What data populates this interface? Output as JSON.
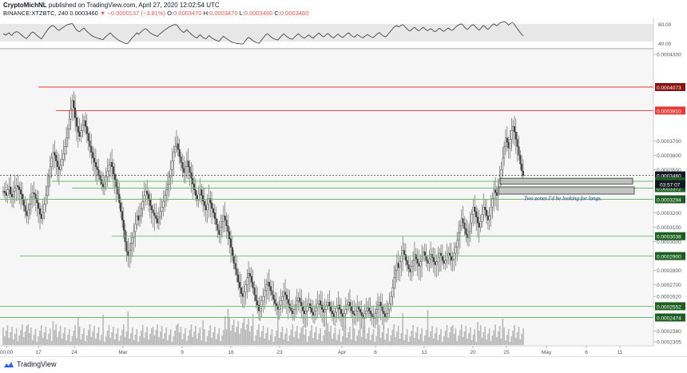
{
  "header": {
    "author": "CryptoMichNL",
    "published": "published on TradingView.com, April 27, 2020 12:02:54 UTC",
    "symbol": "BINANCE:XTZBTC, 240",
    "last": "0.0003460",
    "change": "▼ −0.0000137 (−3.81%)",
    "o_label": "O:",
    "o_value": "0.0003470",
    "h_label": "H:",
    "h_value": "0.0003470",
    "l_label": "L:",
    "l_value": "0.0003460",
    "c_label": "C:",
    "c_value": "0.0003460"
  },
  "footer": {
    "brand": "TradingView"
  },
  "colors": {
    "up": "#4a4a4a",
    "down": "#4a4a4a",
    "red_level": "#e53935",
    "green_level": "#66bb6a",
    "badge_dark": "#131722",
    "badge_green": "#1b5e20",
    "badge_red": "#e53935",
    "badge_darkred": "#8b1010",
    "annotation": "#1c3f94"
  },
  "chart_data": {
    "type": "candlestick",
    "x_ticks": [
      "00:00",
      "17",
      "24",
      "Mar",
      "9",
      "16",
      "23",
      "Apr",
      "6",
      "13",
      "20",
      "25",
      "May",
      "6",
      "11"
    ],
    "y_ticks": [
      "0.0004300",
      "0.0003700",
      "0.0003600",
      "0.0003500",
      "0.0003200",
      "0.0003100",
      "0.0003000",
      "0.0002800",
      "0.0002700",
      "0.0002620",
      "0.0002380",
      "0.0002305"
    ],
    "price_range": [
      0.0002305,
      0.00043
    ],
    "rsi_ticks": [
      "80.00",
      "40.00"
    ],
    "levels": [
      {
        "price": 0.0004073,
        "label": "0.0004073",
        "type": "red",
        "badge": "darkred"
      },
      {
        "price": 0.000391,
        "label": "0.0003910",
        "type": "red",
        "badge": "red"
      },
      {
        "price": 0.000346,
        "label": "0.0003460",
        "type": "current",
        "badge": "dark"
      },
      {
        "price": 0.0003419,
        "label": "0.0003419",
        "type": "green",
        "badge": "green"
      },
      {
        "price": 0.0003372,
        "label": "0.0003372",
        "type": "green",
        "badge": "green"
      },
      {
        "price": 0.0003294,
        "label": "0.0003294",
        "type": "green",
        "badge": "green"
      },
      {
        "price": 0.0003038,
        "label": "0.0003038",
        "type": "green",
        "badge": "green"
      },
      {
        "price": 0.00029,
        "label": "0.0002900",
        "type": "green",
        "badge": "green"
      },
      {
        "price": 0.0002552,
        "label": "0.0002552",
        "type": "green",
        "badge": "green"
      },
      {
        "price": 0.0002474,
        "label": "0.0002474",
        "type": "green",
        "badge": "green"
      }
    ],
    "countdown": "03:57:07",
    "zones": [
      {
        "top": 0.000344,
        "bottom": 0.00034
      },
      {
        "top": 0.000338,
        "bottom": 0.000333
      }
    ],
    "annotation": "Two zones I'd be looking for longs.",
    "series": [
      {
        "name": "price",
        "values": [
          0.000335,
          0.000334,
          0.000332,
          0.000336,
          0.000338,
          0.000333,
          0.000331,
          0.000335,
          0.000337,
          0.000339,
          0.000338,
          0.000336,
          0.000333,
          0.000329,
          0.000325,
          0.000321,
          0.000318,
          0.000322,
          0.000326,
          0.000331,
          0.000334,
          0.000333,
          0.00033,
          0.000327,
          0.000323,
          0.000319,
          0.000316,
          0.00032,
          0.000326,
          0.000332,
          0.000338,
          0.000345,
          0.000352,
          0.000358,
          0.000362,
          0.00036,
          0.000356,
          0.000352,
          0.00035,
          0.000353,
          0.000357,
          0.000361,
          0.000366,
          0.000372,
          0.000378,
          0.000385,
          0.000392,
          0.000398,
          0.000393,
          0.000386,
          0.00038,
          0.000376,
          0.000373,
          0.000377,
          0.000381,
          0.000384,
          0.00038,
          0.000375,
          0.00037,
          0.000366,
          0.000362,
          0.000358,
          0.000355,
          0.000352,
          0.00035,
          0.000346,
          0.000343,
          0.00034,
          0.000338,
          0.000342,
          0.000345,
          0.000349,
          0.000353,
          0.000355,
          0.000352,
          0.000347,
          0.000343,
          0.000338,
          0.000333,
          0.000327,
          0.000321,
          0.000315,
          0.000308,
          0.0003,
          0.000293,
          0.00029,
          0.000294,
          0.000299,
          0.000303,
          0.000307,
          0.000312,
          0.000318,
          0.000315,
          0.000318,
          0.000323,
          0.000328,
          0.000332,
          0.000335,
          0.000333,
          0.000329,
          0.000325,
          0.000322,
          0.00032,
          0.000318,
          0.000316,
          0.000313,
          0.000317,
          0.000321,
          0.000324,
          0.000328,
          0.000332,
          0.000336,
          0.00034,
          0.000345,
          0.00035,
          0.000356,
          0.000362,
          0.000366,
          0.000368,
          0.000364,
          0.000359,
          0.000355,
          0.000351,
          0.000348,
          0.000352,
          0.000356,
          0.000352,
          0.000348,
          0.000344,
          0.00034,
          0.000336,
          0.000332,
          0.000329,
          0.000333,
          0.000336,
          0.000332,
          0.000328,
          0.000325,
          0.000322,
          0.000326,
          0.00033,
          0.000327,
          0.000323,
          0.00032,
          0.000316,
          0.000312,
          0.000308,
          0.000305,
          0.00031,
          0.000314,
          0.000318,
          0.000315,
          0.000311,
          0.000307,
          0.000302,
          0.000296,
          0.00029,
          0.000285,
          0.000281,
          0.000277,
          0.000272,
          0.000268,
          0.000264,
          0.000262,
          0.000265,
          0.00027,
          0.000275,
          0.000278,
          0.000276,
          0.000272,
          0.000268,
          0.000263,
          0.000259,
          0.000256,
          0.000252,
          0.000255,
          0.000259,
          0.000262,
          0.000266,
          0.00027,
          0.000272,
          0.000269,
          0.000266,
          0.000263,
          0.00026,
          0.000257,
          0.000255,
          0.000253,
          0.000256,
          0.000259,
          0.000262,
          0.000265,
          0.000263,
          0.00026,
          0.000257,
          0.000254,
          0.000252,
          0.00025,
          0.000253,
          0.000256,
          0.000259,
          0.000261,
          0.000258,
          0.000255,
          0.000252,
          0.00025,
          0.000252,
          0.000255,
          0.000257,
          0.000254,
          0.000251,
          0.000249,
          0.000252,
          0.000254,
          0.000257,
          0.000259,
          0.000256,
          0.000253,
          0.000251,
          0.000253,
          0.000256,
          0.000258,
          0.000255,
          0.000252,
          0.00025,
          0.000248,
          0.000251,
          0.000254,
          0.000256,
          0.000253,
          0.00025,
          0.000248,
          0.00025,
          0.000253,
          0.000256,
          0.000258,
          0.000255,
          0.000252,
          0.00025,
          0.000249,
          0.000252,
          0.000255,
          0.000253,
          0.000251,
          0.000249,
          0.000247,
          0.00025,
          0.000252,
          0.000254,
          0.000252,
          0.00025,
          0.000248,
          0.000247,
          0.00025,
          0.000253,
          0.000256,
          0.000258,
          0.000255,
          0.000252,
          0.00025,
          0.000248,
          0.00025,
          0.000253,
          0.000257,
          0.000262,
          0.000268,
          0.000275,
          0.00028,
          0.000285,
          0.000282,
          0.000286,
          0.00029,
          0.000294,
          0.000291,
          0.000287,
          0.000284,
          0.000281,
          0.000279,
          0.000283,
          0.000287,
          0.000291,
          0.000288,
          0.000285,
          0.000283,
          0.000286,
          0.00029,
          0.000293,
          0.00029,
          0.000287,
          0.000285,
          0.000288,
          0.000291,
          0.000289,
          0.000286,
          0.000284,
          0.000286,
          0.000289,
          0.000292,
          0.00029,
          0.000287,
          0.000285,
          0.000287,
          0.00029,
          0.000292,
          0.00029,
          0.000287,
          0.000288,
          0.000292,
          0.000296,
          0.000301,
          0.000306,
          0.000311,
          0.000316,
          0.000313,
          0.000309,
          0.000305,
          0.000303,
          0.000307,
          0.000313,
          0.000319,
          0.000324,
          0.000321,
          0.000317,
          0.000313,
          0.00031,
          0.000314,
          0.000319,
          0.000324,
          0.000322,
          0.000318,
          0.000315,
          0.000318,
          0.000324,
          0.00033,
          0.000336,
          0.000334,
          0.000332,
          0.000337,
          0.000343,
          0.00035,
          0.000358,
          0.000366,
          0.000372,
          0.000369,
          0.000365,
          0.000371,
          0.000377,
          0.00038,
          0.000376,
          0.000371,
          0.000366,
          0.00036,
          0.000354,
          0.000349,
          0.000346
        ]
      }
    ],
    "rsi": [
      52,
      50,
      48,
      53,
      55,
      49,
      47,
      54,
      56,
      58,
      57,
      54,
      50,
      46,
      43,
      40,
      38,
      44,
      48,
      54,
      57,
      55,
      51,
      47,
      44,
      40,
      37,
      43,
      50,
      56,
      62,
      68,
      72,
      75,
      76,
      73,
      68,
      64,
      62,
      65,
      68,
      71,
      74,
      77,
      79,
      80,
      81,
      82,
      76,
      69,
      63,
      60,
      58,
      62,
      66,
      69,
      64,
      59,
      55,
      51,
      48,
      45,
      43,
      41,
      40,
      38,
      37,
      36,
      35,
      40,
      44,
      48,
      52,
      54,
      50,
      45,
      42,
      38,
      35,
      32,
      30,
      28,
      26,
      24,
      23,
      25,
      30,
      36,
      41,
      45,
      50,
      55,
      50,
      54,
      58,
      62,
      65,
      67,
      64,
      59,
      55,
      52,
      50,
      48,
      46,
      44,
      49,
      53,
      56,
      60,
      63,
      66,
      69,
      72,
      74,
      76,
      78,
      79,
      78,
      73,
      67,
      62,
      58,
      56,
      60,
      64,
      59,
      55,
      51,
      47,
      44,
      41,
      40,
      45,
      49,
      45,
      41,
      39,
      37,
      42,
      47,
      43,
      40,
      37,
      35,
      33,
      31,
      30,
      36,
      41,
      45,
      41,
      38,
      35,
      32,
      29,
      27,
      26,
      25,
      24,
      23,
      23,
      22,
      22,
      26,
      32,
      38,
      42,
      39,
      35,
      32,
      29,
      27,
      26,
      24,
      29,
      35,
      40,
      45,
      50,
      52,
      48,
      44,
      41,
      38,
      36,
      35,
      34,
      39,
      44,
      48,
      52,
      48,
      44,
      41,
      38,
      37,
      36,
      41,
      45,
      49,
      52,
      48,
      44,
      41,
      39,
      42,
      46,
      49,
      45,
      41,
      39,
      44,
      47,
      51,
      54,
      50,
      46,
      43,
      46,
      50,
      53,
      49,
      45,
      42,
      40,
      44,
      48,
      51,
      47,
      43,
      41,
      44,
      48,
      52,
      55,
      51,
      47,
      44,
      42,
      46,
      50,
      47,
      44,
      42,
      40,
      44,
      47,
      50,
      47,
      44,
      42,
      41,
      45,
      49,
      53,
      56,
      52,
      48,
      45,
      43,
      46,
      51,
      56,
      61,
      66,
      71,
      74,
      76,
      72,
      74,
      77,
      79,
      75,
      70,
      66,
      62,
      60,
      64,
      68,
      71,
      67,
      63,
      61,
      64,
      68,
      71,
      67,
      63,
      61,
      64,
      67,
      64,
      60,
      58,
      61,
      65,
      68,
      65,
      61,
      59,
      62,
      66,
      69,
      66,
      62,
      63,
      67,
      71,
      75,
      78,
      80,
      81,
      77,
      72,
      67,
      65,
      69,
      74,
      77,
      79,
      75,
      70,
      66,
      63,
      67,
      72,
      76,
      73,
      68,
      65,
      69,
      74,
      78,
      81,
      78,
      75,
      79,
      83,
      85,
      86,
      87,
      86,
      82,
      77,
      81,
      84,
      84,
      79,
      73,
      67,
      61,
      55,
      50,
      46
    ]
  }
}
